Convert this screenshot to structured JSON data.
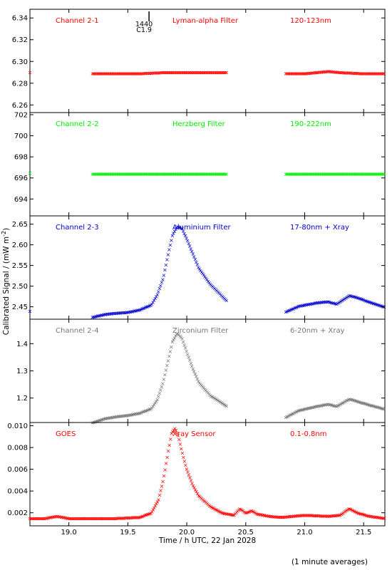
{
  "chart_data": {
    "type": "scatter",
    "xlabel": "Time / h UTC, 22 Jan 2028",
    "ylabel": "Calibrated Signal / (mW m",
    "ylabel_sup": "-2",
    "ylabel_close": ")",
    "footnote": "(1 minute averages)",
    "xlim": [
      18.67,
      21.68
    ],
    "xticks": [
      19.0,
      19.5,
      20.0,
      20.5,
      21.0,
      21.5
    ],
    "xtick_labels": [
      "19.0",
      "19.5",
      "20.0",
      "20.5",
      "21.0",
      "21.5"
    ],
    "event_marker": {
      "x": 19.68,
      "label_time": "1440",
      "label_class": "C1.9"
    },
    "panels": [
      {
        "name": "Channel 2-1",
        "filter": "Lyman-alpha Filter",
        "band": "120-123nm",
        "color": "#ff0000",
        "ylim": [
          6.253,
          6.348
        ],
        "yticks": [
          6.26,
          6.28,
          6.3,
          6.32,
          6.34
        ],
        "ytick_labels": [
          "6.26",
          "6.28",
          "6.30",
          "6.32",
          "6.34"
        ],
        "series": [
          {
            "x": [
              18.67
            ],
            "y": [
              6.29
            ]
          },
          {
            "x": [
              19.2,
              19.4,
              19.6,
              19.8,
              20.0,
              20.2,
              20.34
            ],
            "y": [
              6.289,
              6.289,
              6.289,
              6.29,
              6.29,
              6.29,
              6.29
            ]
          },
          {
            "x": [
              20.84,
              21.0,
              21.1,
              21.2,
              21.3,
              21.5,
              21.68
            ],
            "y": [
              6.289,
              6.289,
              6.29,
              6.291,
              6.29,
              6.289,
              6.289
            ]
          }
        ]
      },
      {
        "name": "Channel 2-2",
        "filter": "Herzberg Filter",
        "band": "190-222nm",
        "color": "#00ee00",
        "ylim": [
          692.4,
          702.2
        ],
        "yticks": [
          694,
          696,
          698,
          700,
          702
        ],
        "ytick_labels": [
          "694",
          "696",
          "698",
          "700",
          "702"
        ],
        "series": [
          {
            "x": [
              18.67
            ],
            "y": [
              696.5
            ]
          },
          {
            "x": [
              19.2,
              19.5,
              19.8,
              20.0,
              20.2,
              20.34
            ],
            "y": [
              696.4,
              696.4,
              696.4,
              696.4,
              696.4,
              696.4
            ]
          },
          {
            "x": [
              20.84,
              21.0,
              21.2,
              21.4,
              21.68
            ],
            "y": [
              696.4,
              696.4,
              696.4,
              696.4,
              696.4
            ]
          }
        ]
      },
      {
        "name": "Channel 2-3",
        "filter": "Aluminium Filter",
        "band": "17-80nm + Xray",
        "color": "#0000cc",
        "ylim": [
          2.42,
          2.67
        ],
        "yticks": [
          2.45,
          2.5,
          2.55,
          2.6,
          2.65
        ],
        "ytick_labels": [
          "2.45",
          "2.50",
          "2.55",
          "2.60",
          "2.65"
        ],
        "series": [
          {
            "x": [
              18.67
            ],
            "y": [
              2.44
            ]
          },
          {
            "x": [
              19.2,
              19.3,
              19.4,
              19.5,
              19.6,
              19.7,
              19.75,
              19.8,
              19.84,
              19.88,
              19.92,
              19.96,
              20.0,
              20.05,
              20.1,
              20.2,
              20.34
            ],
            "y": [
              2.425,
              2.432,
              2.435,
              2.437,
              2.443,
              2.455,
              2.48,
              2.52,
              2.575,
              2.625,
              2.645,
              2.64,
              2.615,
              2.58,
              2.545,
              2.505,
              2.465
            ]
          },
          {
            "x": [
              20.84,
              20.95,
              21.1,
              21.2,
              21.27,
              21.33,
              21.38,
              21.45,
              21.55,
              21.68
            ],
            "y": [
              2.438,
              2.452,
              2.46,
              2.463,
              2.457,
              2.468,
              2.478,
              2.472,
              2.462,
              2.45
            ]
          }
        ]
      },
      {
        "name": "Channel 2-4",
        "filter": "Zirconium Filter",
        "band": "6-20nm + Xray",
        "color": "#777777",
        "ylim": [
          1.11,
          1.49
        ],
        "yticks": [
          1.2,
          1.3,
          1.4
        ],
        "ytick_labels": [
          "1.2",
          "1.3",
          "1.4"
        ],
        "series": [
          {
            "x": [
              19.2,
              19.3,
              19.4,
              19.5,
              19.6,
              19.7,
              19.75,
              19.8,
              19.84,
              19.88,
              19.92,
              19.96,
              20.0,
              20.05,
              20.1,
              20.2,
              20.34
            ],
            "y": [
              1.11,
              1.125,
              1.132,
              1.137,
              1.145,
              1.162,
              1.195,
              1.26,
              1.335,
              1.41,
              1.44,
              1.42,
              1.37,
              1.31,
              1.26,
              1.21,
              1.17
            ]
          },
          {
            "x": [
              20.84,
              20.95,
              21.1,
              21.2,
              21.27,
              21.33,
              21.38,
              21.45,
              21.55,
              21.68
            ],
            "y": [
              1.13,
              1.155,
              1.17,
              1.178,
              1.17,
              1.185,
              1.197,
              1.188,
              1.175,
              1.16
            ]
          }
        ]
      },
      {
        "name": "GOES",
        "filter": "Xray Sensor",
        "band": "0.1-0.8nm",
        "color": "#ff0000",
        "ylim": [
          0.0008,
          0.0103
        ],
        "yticks": [
          0.002,
          0.004,
          0.006,
          0.008,
          0.01
        ],
        "ytick_labels": [
          "0.002",
          "0.004",
          "0.006",
          "0.008",
          "0.010"
        ],
        "series": [
          {
            "x": [
              18.67,
              18.8,
              18.9,
              19.0,
              19.2,
              19.4,
              19.6,
              19.7,
              19.76,
              19.8,
              19.84,
              19.87,
              19.9,
              19.93,
              19.96,
              20.0,
              20.05,
              20.1,
              20.2,
              20.3,
              20.4,
              20.45,
              20.5,
              20.55,
              20.6,
              20.7,
              20.8,
              21.0,
              21.2,
              21.3,
              21.35,
              21.38,
              21.45,
              21.55,
              21.68
            ],
            "y": [
              0.0015,
              0.0015,
              0.0017,
              0.0015,
              0.0015,
              0.0015,
              0.0016,
              0.002,
              0.0032,
              0.005,
              0.0075,
              0.0093,
              0.0098,
              0.009,
              0.0076,
              0.006,
              0.0046,
              0.0036,
              0.0026,
              0.002,
              0.0018,
              0.0024,
              0.002,
              0.0022,
              0.0019,
              0.0017,
              0.0016,
              0.0018,
              0.0017,
              0.0018,
              0.0022,
              0.0024,
              0.002,
              0.0017,
              0.0015
            ]
          }
        ]
      }
    ]
  }
}
